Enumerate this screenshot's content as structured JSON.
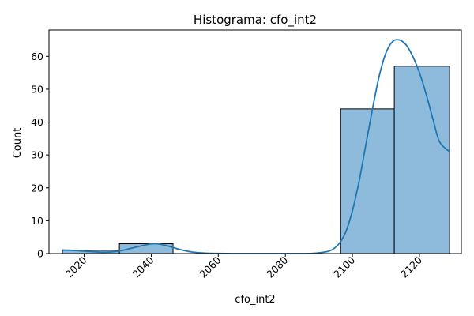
{
  "chart_data": {
    "type": "bar",
    "title": "Histograma: cfo_int2",
    "xlabel": "cfo_int2",
    "ylabel": "Count",
    "xlim": [
      2009.5,
      2132.5
    ],
    "ylim": [
      0,
      68
    ],
    "x_ticks": [
      2020,
      2040,
      2060,
      2080,
      2100,
      2120
    ],
    "y_ticks": [
      0,
      10,
      20,
      30,
      40,
      50,
      60
    ],
    "bins": [
      {
        "start": 2013.5,
        "end": 2030.5,
        "count": 1
      },
      {
        "start": 2030.5,
        "end": 2046.5,
        "count": 3
      },
      {
        "start": 2046.5,
        "end": 2063.5,
        "count": 0
      },
      {
        "start": 2063.5,
        "end": 2079.5,
        "count": 0
      },
      {
        "start": 2079.5,
        "end": 2096.5,
        "count": 0
      },
      {
        "start": 2096.5,
        "end": 2112.5,
        "count": 44
      },
      {
        "start": 2112.5,
        "end": 2129.0,
        "count": 57
      }
    ],
    "kde": {
      "x": [
        2013.5,
        2018,
        2022,
        2026,
        2030,
        2034,
        2038,
        2041,
        2044,
        2048,
        2052,
        2056,
        2060,
        2064,
        2068,
        2072,
        2076,
        2080,
        2084,
        2088,
        2092,
        2094,
        2096,
        2098,
        2100,
        2102,
        2104,
        2106,
        2108,
        2110,
        2112,
        2114,
        2116,
        2118,
        2120,
        2122,
        2124,
        2126,
        2129
      ],
      "y": [
        1.1,
        0.9,
        0.6,
        0.4,
        0.7,
        1.6,
        2.6,
        3.0,
        2.6,
        1.4,
        0.5,
        0.15,
        0.04,
        0.01,
        0.0,
        0.0,
        0.0,
        0.0,
        0.0,
        0.05,
        0.5,
        1.2,
        3.0,
        6.5,
        13.0,
        22.0,
        33.0,
        44.0,
        54.0,
        61.0,
        64.5,
        65.0,
        63.5,
        60.0,
        55.0,
        48.5,
        41.0,
        34.0,
        31.0
      ]
    },
    "colors": {
      "bar_fill": "#8ebadb",
      "bar_edge": "#000000",
      "kde_line": "#1f77b4"
    },
    "grid": false,
    "legend": "none"
  }
}
